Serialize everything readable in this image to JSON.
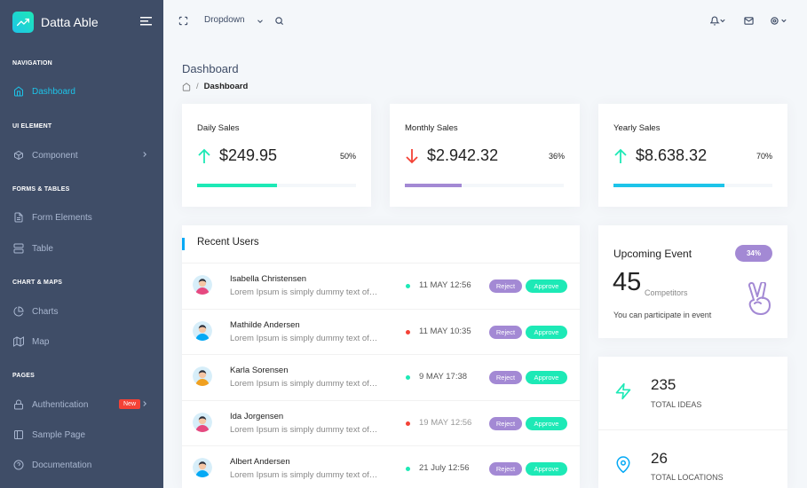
{
  "brand": {
    "name": "Datta Able"
  },
  "nav": {
    "caption_navigation": "NAVIGATION",
    "dashboard": "Dashboard",
    "caption_ui": "UI ELEMENT",
    "component": "Component",
    "caption_forms": "FORMS & TABLES",
    "form_elements": "Form Elements",
    "table": "Table",
    "caption_charts": "CHART & MAPS",
    "charts": "Charts",
    "map": "Map",
    "caption_pages": "PAGES",
    "authentication": "Authentication",
    "auth_badge": "New",
    "sample_page": "Sample Page",
    "documentation": "Documentation"
  },
  "header": {
    "dropdown_label": "Dropdown"
  },
  "page": {
    "title": "Dashboard",
    "breadcrumb_current": "Dashboard",
    "breadcrumb_sep": "/"
  },
  "stats": [
    {
      "label": "Daily Sales",
      "value": "$249.95",
      "percent": "50%",
      "progress": 50,
      "trend": "up",
      "color": "#1de9b6"
    },
    {
      "label": "Monthly Sales",
      "value": "$2.942.32",
      "percent": "36%",
      "progress": 36,
      "trend": "down",
      "color": "#a389d4"
    },
    {
      "label": "Yearly Sales",
      "value": "$8.638.32",
      "percent": "70%",
      "progress": 70,
      "trend": "up",
      "color": "#1dc4e9"
    }
  ],
  "recent_users": {
    "title": "Recent Users",
    "reject_label": "Reject",
    "approve_label": "Approve",
    "rows": [
      {
        "name": "Isabella Christensen",
        "desc": "Lorem Ipsum is simply dummy text of…",
        "date": "11 MAY 12:56",
        "status_color": "#1de9b6",
        "date_color": "#555"
      },
      {
        "name": "Mathilde Andersen",
        "desc": "Lorem Ipsum is simply dummy text of…",
        "date": "11 MAY 10:35",
        "status_color": "#f44236",
        "date_color": "#555"
      },
      {
        "name": "Karla Sorensen",
        "desc": "Lorem Ipsum is simply dummy text of…",
        "date": "9 MAY 17:38",
        "status_color": "#1de9b6",
        "date_color": "#555"
      },
      {
        "name": "Ida Jorgensen",
        "desc": "Lorem Ipsum is simply dummy text of…",
        "date": "19 MAY 12:56",
        "status_color": "#f44236",
        "date_color": "#999"
      },
      {
        "name": "Albert Andersen",
        "desc": "Lorem Ipsum is simply dummy text of…",
        "date": "21 July 12:56",
        "status_color": "#1de9b6",
        "date_color": "#555"
      }
    ]
  },
  "event": {
    "title": "Upcoming Event",
    "badge": "34%",
    "count": "45",
    "count_label": "Competitors",
    "subtitle": "You can participate in event"
  },
  "kpis": [
    {
      "value": "235",
      "label": "TOTAL IDEAS",
      "icon": "zap-icon"
    },
    {
      "value": "26",
      "label": "TOTAL LOCATIONS",
      "icon": "map-pin-icon"
    }
  ]
}
